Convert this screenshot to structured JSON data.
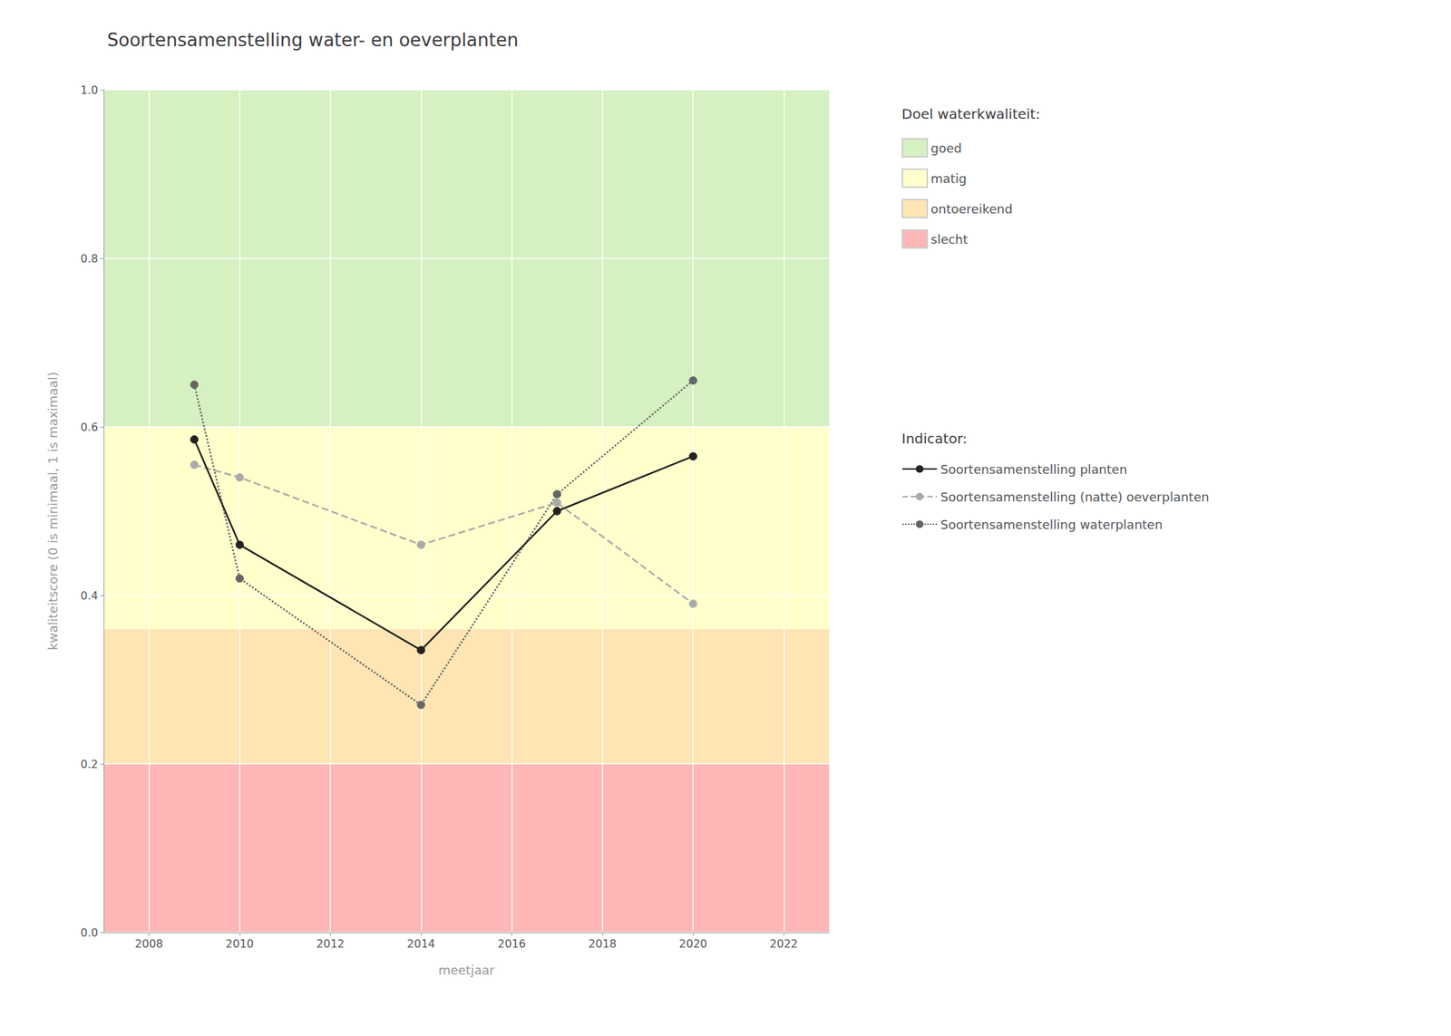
{
  "chart_data": {
    "type": "line",
    "title": "Soortensamenstelling water- en oeverplanten",
    "x_label": "meetjaar",
    "y_label": "kwaliteitscore (0 is minimaal, 1 is maximaal)",
    "xlim": [
      2007,
      2023
    ],
    "xticks": [
      2008,
      2010,
      2012,
      2014,
      2016,
      2018,
      2020,
      2022
    ],
    "ylim": [
      0.0,
      1.0
    ],
    "yticks": [
      {
        "value": 0.0,
        "label": "0.0"
      },
      0.2,
      0.4,
      0.6,
      0.8,
      {
        "value": 1.0,
        "label": "1.0"
      }
    ],
    "grid": true,
    "legend": "right",
    "band_legend_title": "Doel waterkwaliteit:",
    "bands": [
      {
        "name": "goed",
        "color": "#d5f0c1",
        "range": [
          0.6,
          1.0
        ]
      },
      {
        "name": "matig",
        "color": "#ffffcc",
        "range": [
          0.36,
          0.6
        ]
      },
      {
        "name": "ontoereikend",
        "color": "#ffe5b4",
        "range": [
          0.2,
          0.36
        ]
      },
      {
        "name": "slecht",
        "color": "#ffb6b6",
        "range": [
          0.0,
          0.2
        ]
      }
    ],
    "series_legend_title": "Indicator:",
    "series": [
      {
        "name": "Soortensamenstelling planten",
        "color": "#222222",
        "line_style": "solid",
        "marker": "circle",
        "x": [
          2009,
          2010,
          2014,
          2017,
          2020
        ],
        "values": [
          0.585,
          0.46,
          0.335,
          0.5,
          0.565
        ]
      },
      {
        "name": "Soortensamenstelling (natte) oeverplanten",
        "color": "#aaaaaa",
        "line_style": "dashed",
        "marker": "circle",
        "x": [
          2009,
          2010,
          2014,
          2017,
          2020
        ],
        "values": [
          0.555,
          0.54,
          0.46,
          0.51,
          0.39
        ]
      },
      {
        "name": "Soortensamenstelling waterplanten",
        "color": "#666666",
        "line_style": "dotted",
        "marker": "circle",
        "x": [
          2009,
          2010,
          2014,
          2017,
          2020
        ],
        "values": [
          0.65,
          0.42,
          0.27,
          0.52,
          0.655
        ]
      }
    ]
  }
}
